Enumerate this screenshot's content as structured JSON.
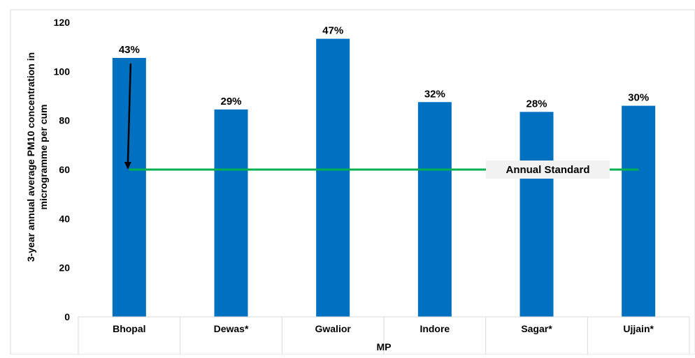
{
  "chart_data": {
    "type": "bar",
    "categories": [
      "Bhopal",
      "Dewas*",
      "Gwalior",
      "Indore",
      "Sagar*",
      "Ujjain*"
    ],
    "values": [
      105.5,
      84.5,
      113.3,
      87.5,
      83.5,
      86.0
    ],
    "data_labels": [
      "43%",
      "29%",
      "47%",
      "32%",
      "28%",
      "30%"
    ],
    "ylim": [
      0,
      120
    ],
    "yticks": [
      "0",
      "20",
      "40",
      "60",
      "80",
      "100",
      "120"
    ],
    "xlabel": "MP",
    "ylabel": "3-year annual average PM10 concentration in microgramme per cum",
    "grid": false,
    "colors": {
      "bar": "#0070C0",
      "standard_line": "#00B050",
      "arrow": "#000000"
    },
    "reference_line": {
      "value": 60,
      "label": "Annual Standard"
    }
  }
}
